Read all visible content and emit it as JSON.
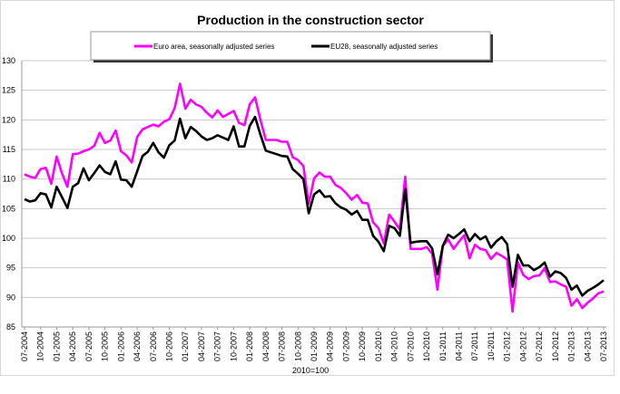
{
  "chart_data": {
    "type": "line",
    "title": "Production in the construction sector",
    "xlabel": "2010=100",
    "ylabel": "",
    "ylim": [
      85,
      130
    ],
    "yticks": [
      85,
      90,
      95,
      100,
      105,
      110,
      115,
      120,
      125,
      130
    ],
    "grid": true,
    "legend_position": "top",
    "x_start": "07-2004",
    "x_end": "07-2013",
    "x_frequency": "monthly",
    "x_tick_labels": [
      "07-2004",
      "10-2004",
      "01-2005",
      "04-2005",
      "07-2005",
      "10-2005",
      "01-2006",
      "04-2006",
      "07-2006",
      "10-2006",
      "01-2007",
      "04-2007",
      "07-2007",
      "10-2007",
      "01-2008",
      "04-2008",
      "07-2008",
      "10-2008",
      "01-2009",
      "04-2009",
      "07-2009",
      "10-2009",
      "01-2010",
      "04-2010",
      "07-2010",
      "10-2010",
      "01-2011",
      "04-2011",
      "07-2011",
      "10-2011",
      "01-2012",
      "04-2012",
      "07-2012",
      "10-2012",
      "01-2013",
      "04-2013",
      "07-2013"
    ],
    "series": [
      {
        "name": "Euro area, seasonally adjusted series",
        "color": "#ff00ff",
        "values": [
          110.8,
          110.4,
          110.2,
          111.7,
          111.9,
          109.2,
          113.8,
          110.9,
          108.7,
          114.2,
          114.3,
          114.7,
          115.0,
          115.6,
          117.8,
          116.1,
          116.5,
          118.2,
          114.7,
          114.0,
          112.8,
          117.1,
          118.4,
          118.8,
          119.2,
          118.9,
          119.7,
          120.1,
          122.0,
          126.1,
          121.9,
          123.4,
          122.6,
          122.2,
          121.2,
          120.4,
          121.6,
          120.5,
          121.0,
          121.5,
          119.5,
          119.1,
          122.6,
          123.8,
          120.0,
          116.6,
          116.6,
          116.6,
          116.3,
          116.3,
          113.7,
          113.2,
          112.2,
          105.8,
          110.1,
          111.1,
          110.4,
          110.4,
          109.0,
          108.5,
          107.6,
          106.5,
          107.3,
          106.0,
          105.9,
          102.7,
          101.7,
          99.1,
          104.0,
          102.8,
          101.5,
          110.4,
          98.2,
          98.2,
          98.2,
          98.5,
          97.4,
          91.3,
          98.7,
          99.8,
          98.2,
          99.4,
          100.5,
          96.6,
          98.9,
          98.2,
          98.0,
          96.5,
          97.5,
          97.0,
          96.4,
          87.6,
          95.9,
          93.8,
          93.1,
          93.6,
          93.7,
          94.9,
          92.6,
          92.7,
          92.2,
          91.8,
          88.6,
          89.7,
          88.2,
          89.1,
          89.8,
          90.7,
          91.0
        ]
      },
      {
        "name": "EU28, seasonally adjusted series",
        "color": "#000000",
        "values": [
          106.6,
          106.2,
          106.4,
          107.6,
          107.4,
          105.2,
          108.7,
          106.9,
          105.1,
          108.7,
          109.3,
          111.8,
          109.8,
          111.0,
          112.3,
          111.2,
          110.8,
          113.0,
          109.9,
          109.8,
          108.7,
          111.3,
          113.9,
          114.6,
          116.1,
          114.5,
          113.6,
          115.7,
          116.5,
          120.2,
          116.9,
          118.8,
          118.1,
          117.2,
          116.6,
          116.9,
          117.4,
          117.0,
          116.6,
          118.9,
          115.5,
          115.5,
          119.0,
          120.5,
          117.5,
          114.8,
          114.5,
          114.2,
          113.9,
          113.8,
          111.7,
          110.9,
          110.0,
          104.2,
          107.4,
          108.1,
          107.0,
          107.1,
          105.9,
          105.2,
          104.8,
          104.0,
          104.6,
          103.1,
          103.1,
          100.4,
          99.4,
          97.8,
          102.1,
          101.7,
          100.4,
          108.3,
          99.2,
          99.4,
          99.5,
          99.5,
          98.3,
          93.9,
          98.7,
          100.6,
          100.0,
          100.7,
          101.5,
          99.5,
          100.7,
          99.8,
          100.3,
          98.4,
          99.5,
          100.2,
          99.0,
          91.8,
          97.2,
          95.4,
          95.4,
          94.6,
          95.1,
          95.9,
          93.5,
          94.4,
          94.1,
          93.3,
          91.3,
          92.0,
          90.3,
          91.1,
          91.6,
          92.2,
          92.9
        ]
      }
    ]
  }
}
